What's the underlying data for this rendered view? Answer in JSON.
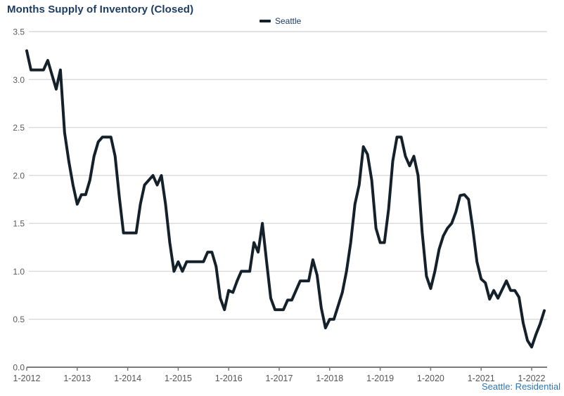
{
  "chart_data": {
    "type": "line",
    "title": "Months Supply of Inventory (Closed)",
    "legend_position": "top-center",
    "grid": "horizontal",
    "xlabel": "",
    "ylabel": "",
    "ylim": [
      0,
      3.5
    ],
    "y_tick_labels": [
      "0.0",
      "0.5",
      "1.0",
      "1.5",
      "2.0",
      "2.5",
      "3.0",
      "3.5"
    ],
    "x_tick_labels": [
      "1-2012",
      "1-2013",
      "1-2014",
      "1-2015",
      "1-2016",
      "1-2017",
      "1-2018",
      "1-2019",
      "1-2020",
      "1-2021",
      "1-2022"
    ],
    "x_unit": "month",
    "series": [
      {
        "name": "Seattle",
        "color": "#14212b",
        "start": "1-2012",
        "end": "4-2022",
        "values": [
          3.3,
          3.1,
          3.1,
          3.1,
          3.1,
          3.2,
          3.05,
          2.9,
          3.1,
          2.45,
          2.15,
          1.9,
          1.7,
          1.8,
          1.8,
          1.95,
          2.2,
          2.35,
          2.4,
          2.4,
          2.4,
          2.2,
          1.78,
          1.4,
          1.4,
          1.4,
          1.4,
          1.7,
          1.9,
          1.95,
          2.0,
          1.9,
          2.0,
          1.7,
          1.3,
          1.0,
          1.1,
          1.0,
          1.1,
          1.1,
          1.1,
          1.1,
          1.1,
          1.2,
          1.2,
          1.05,
          0.72,
          0.6,
          0.8,
          0.78,
          0.9,
          1.0,
          1.0,
          1.0,
          1.3,
          1.2,
          1.5,
          1.1,
          0.72,
          0.6,
          0.6,
          0.6,
          0.7,
          0.7,
          0.8,
          0.9,
          0.9,
          0.9,
          1.12,
          0.96,
          0.62,
          0.41,
          0.5,
          0.5,
          0.64,
          0.78,
          1.0,
          1.3,
          1.7,
          1.9,
          2.3,
          2.22,
          1.95,
          1.45,
          1.3,
          1.3,
          1.65,
          2.15,
          2.4,
          2.4,
          2.2,
          2.1,
          2.2,
          2.0,
          1.4,
          0.95,
          0.82,
          1.0,
          1.23,
          1.37,
          1.45,
          1.5,
          1.62,
          1.79,
          1.8,
          1.75,
          1.45,
          1.1,
          0.92,
          0.88,
          0.71,
          0.8,
          0.72,
          0.81,
          0.9,
          0.8,
          0.8,
          0.73,
          0.46,
          0.28,
          0.21,
          0.34,
          0.45,
          0.59
        ]
      }
    ],
    "source_note": "Seattle: Residential"
  },
  "layout_colors": {
    "gridline": "#d9d9d9",
    "axis": "#7a7a7a",
    "tick_label": "#555555",
    "title_text": "#1d3c63",
    "source_text": "#2e75b6"
  }
}
